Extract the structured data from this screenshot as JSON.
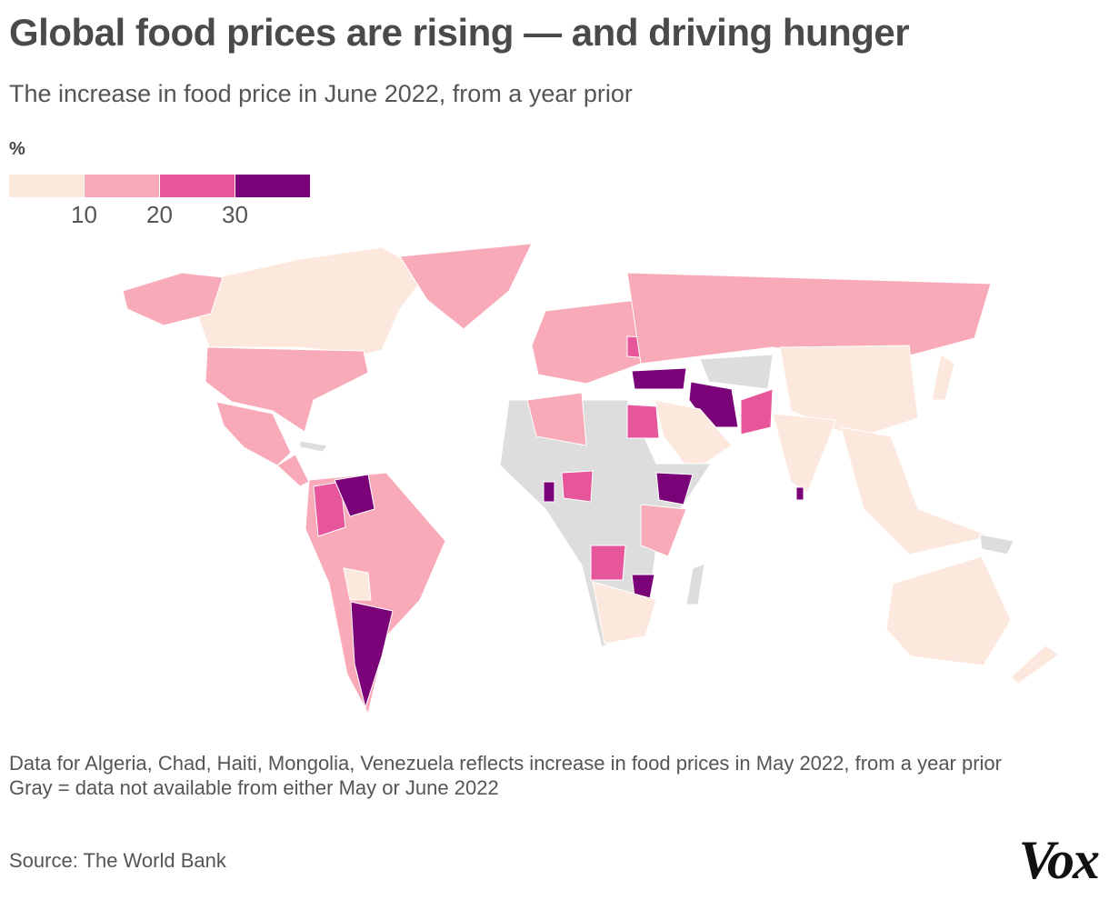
{
  "header": {
    "title": "Global food prices are rising — and driving hunger",
    "subtitle": "The increase in food price in June 2022, from a year prior"
  },
  "legend": {
    "title": "%",
    "colors": [
      "#fde8de",
      "#f9aab8",
      "#e7559a",
      "#7a0177"
    ],
    "ticks": [
      10,
      20,
      30
    ]
  },
  "notes": [
    "Data for Algeria, Chad, Haiti, Mongolia, Venezuela reflects increase in food prices in May 2022, from a year prior",
    "Gray = data not available from either May or June 2022"
  ],
  "source": "Source: The World Bank",
  "logo": "Vox"
}
